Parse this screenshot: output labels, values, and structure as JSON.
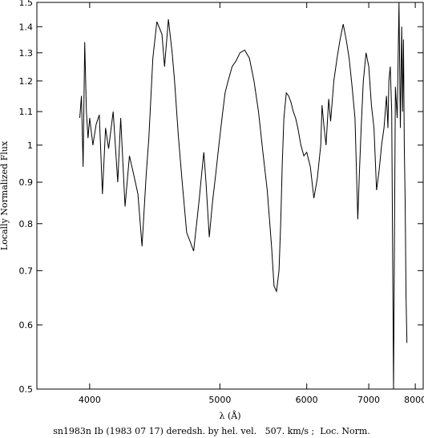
{
  "chart_data": {
    "type": "line",
    "title": "",
    "xlabel": "λ (Å)",
    "ylabel": "Locally Normalized Flux",
    "caption": "sn1983n Ib (1983 07 17) deredsh. by hel. vel.   507. km/s ;  Loc. Norm.",
    "xscale": "reciprocal",
    "yscale": "log",
    "xlim": [
      3700,
      8200
    ],
    "ylim": [
      0.5,
      1.5
    ],
    "xticks": [
      4000,
      5000,
      6000,
      7000,
      8000
    ],
    "yticks": [
      0.5,
      0.6,
      0.7,
      0.8,
      0.9,
      1,
      1.1,
      1.2,
      1.3,
      1.4,
      1.5
    ],
    "ytick_labels": [
      "0.5",
      "0.6",
      "0.7",
      "0.8",
      "0.9",
      "1",
      "1.1",
      "1.2",
      "1.3",
      "1.4",
      "1.5"
    ],
    "grid": false,
    "series": [
      {
        "color": "#000000",
        "x": [
          3940,
          3950,
          3960,
          3970,
          3980,
          3990,
          4000,
          4020,
          4040,
          4060,
          4080,
          4100,
          4120,
          4150,
          4180,
          4200,
          4230,
          4260,
          4290,
          4320,
          4350,
          4380,
          4400,
          4430,
          4460,
          4500,
          4520,
          4550,
          4580,
          4600,
          4630,
          4660,
          4700,
          4730,
          4760,
          4790,
          4810,
          4830,
          4850,
          4870,
          4900,
          4930,
          4960,
          4990,
          5020,
          5050,
          5080,
          5120,
          5160,
          5200,
          5250,
          5300,
          5350,
          5400,
          5450,
          5500,
          5550,
          5580,
          5610,
          5640,
          5660,
          5680,
          5700,
          5730,
          5760,
          5790,
          5820,
          5850,
          5880,
          5920,
          5960,
          6000,
          6050,
          6100,
          6150,
          6200,
          6220,
          6250,
          6280,
          6320,
          6350,
          6400,
          6450,
          6500,
          6550,
          6600,
          6650,
          6700,
          6750,
          6800,
          6830,
          6860,
          6900,
          6950,
          7000,
          7050,
          7100,
          7150,
          7200,
          7250,
          7300,
          7350,
          7380,
          7400,
          7430,
          7460,
          7500,
          7540,
          7580,
          7620,
          7650,
          7680,
          7700,
          7720,
          7740,
          7760,
          7780,
          7800
        ],
        "y": [
          1.08,
          1.15,
          0.94,
          1.34,
          1.1,
          1.02,
          1.08,
          1.0,
          1.06,
          1.09,
          0.87,
          1.05,
          0.99,
          1.1,
          0.9,
          1.08,
          0.84,
          0.97,
          0.92,
          0.87,
          0.75,
          0.92,
          1.02,
          1.28,
          1.42,
          1.37,
          1.25,
          1.43,
          1.3,
          1.2,
          1.03,
          0.91,
          0.78,
          0.76,
          0.74,
          0.81,
          0.86,
          0.92,
          0.98,
          0.9,
          0.77,
          0.85,
          0.92,
          1.0,
          1.08,
          1.16,
          1.2,
          1.25,
          1.27,
          1.3,
          1.31,
          1.28,
          1.2,
          1.1,
          0.98,
          0.88,
          0.75,
          0.67,
          0.66,
          0.7,
          0.8,
          0.95,
          1.08,
          1.16,
          1.15,
          1.13,
          1.1,
          1.08,
          1.05,
          1.0,
          0.97,
          0.98,
          0.94,
          0.86,
          0.91,
          1.0,
          1.12,
          1.05,
          1.0,
          1.14,
          1.07,
          1.2,
          1.28,
          1.35,
          1.41,
          1.35,
          1.28,
          1.18,
          1.08,
          0.81,
          0.93,
          1.05,
          1.2,
          1.3,
          1.25,
          1.12,
          1.05,
          0.88,
          0.93,
          1.0,
          1.05,
          1.15,
          1.05,
          1.2,
          1.25,
          1.1,
          0.5,
          1.18,
          1.08,
          1.5,
          1.05,
          1.4,
          1.1,
          1.35,
          1.0,
          0.85,
          0.65,
          0.57
        ]
      }
    ]
  }
}
